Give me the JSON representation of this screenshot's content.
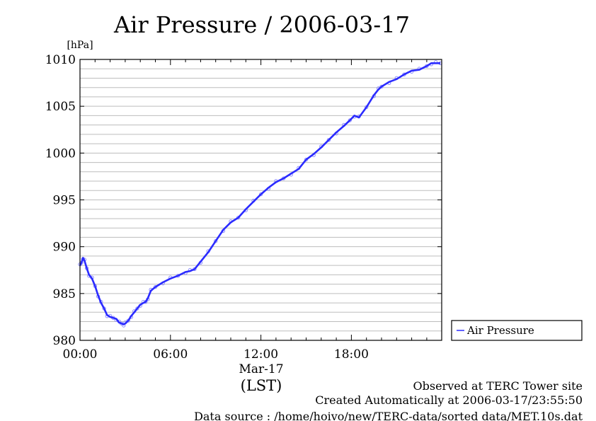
{
  "colors": {
    "line": "#2b2bff",
    "scatter": "#8c8cff",
    "grid": "#bdbdbd",
    "axis": "#000000"
  },
  "footer": {
    "line1": "Observed at TERC Tower site",
    "line2": "Created Automatically at 2006-03-17/23:55:50",
    "line3": "Data source : /home/hoivo/new/TERC-data/sorted  data/MET.10s.dat"
  },
  "chart_data": {
    "type": "line",
    "title": "Air Pressure / 2006-03-17",
    "ylabel": "[hPa]",
    "xlabel": "(LST)",
    "x_date_label": "Mar-17",
    "ylim": [
      980,
      1010
    ],
    "xlim_hours": [
      0,
      24
    ],
    "yticks": [
      980,
      985,
      990,
      995,
      1000,
      1005,
      1010
    ],
    "y_minor_step": 1,
    "xticks": [
      {
        "hour": 0,
        "label": "00:00"
      },
      {
        "hour": 6,
        "label": "06:00"
      },
      {
        "hour": 12,
        "label": "12:00"
      },
      {
        "hour": 18,
        "label": "18:00"
      }
    ],
    "grid": true,
    "legend": {
      "label": "Air Pressure",
      "placement": "right"
    },
    "series": [
      {
        "name": "Air Pressure",
        "x": [
          0.0,
          0.1,
          0.2,
          0.3,
          0.45,
          0.6,
          0.8,
          1.0,
          1.2,
          1.4,
          1.6,
          1.8,
          2.0,
          2.2,
          2.4,
          2.6,
          2.75,
          2.9,
          3.0,
          3.2,
          3.4,
          3.6,
          3.8,
          4.0,
          4.2,
          4.35,
          4.5,
          4.7,
          5.0,
          5.5,
          6.0,
          6.5,
          7.0,
          7.3,
          7.6,
          8.0,
          8.5,
          9.0,
          9.5,
          10.0,
          10.5,
          11.0,
          11.5,
          12.0,
          12.5,
          13.0,
          13.5,
          14.0,
          14.5,
          15.0,
          15.5,
          16.0,
          16.5,
          17.0,
          17.5,
          17.9,
          18.2,
          18.5,
          19.0,
          19.5,
          19.8,
          20.0,
          20.5,
          21.0,
          21.5,
          22.0,
          22.5,
          23.0,
          23.3,
          23.6,
          23.9
        ],
        "values": [
          988.0,
          988.3,
          988.8,
          988.5,
          987.7,
          987.0,
          986.6,
          985.8,
          984.8,
          984.0,
          983.4,
          982.7,
          982.5,
          982.4,
          982.3,
          981.9,
          981.8,
          981.7,
          981.8,
          982.1,
          982.6,
          983.0,
          983.4,
          983.8,
          984.0,
          984.1,
          984.5,
          985.3,
          985.7,
          986.2,
          986.6,
          986.9,
          987.3,
          987.4,
          987.6,
          988.4,
          989.4,
          990.6,
          991.8,
          992.6,
          993.1,
          994.0,
          994.8,
          995.6,
          996.3,
          996.9,
          997.3,
          997.8,
          998.3,
          999.3,
          999.9,
          1000.6,
          1001.4,
          1002.2,
          1002.9,
          1003.5,
          1004.0,
          1003.8,
          1004.9,
          1006.2,
          1006.8,
          1007.1,
          1007.6,
          1007.9,
          1008.4,
          1008.8,
          1008.9,
          1009.3,
          1009.6,
          1009.6,
          1009.6
        ]
      }
    ]
  }
}
